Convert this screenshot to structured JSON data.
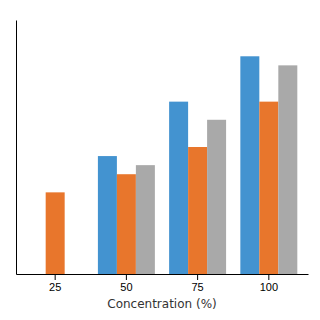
{
  "chart_data": {
    "type": "bar",
    "x_label": "Concentration (%)",
    "categories": [
      "25",
      "50",
      "75",
      "100"
    ],
    "series": [
      {
        "color": "#4393D0",
        "values": [
          0,
          13,
          19,
          24
        ]
      },
      {
        "color": "#E8762C",
        "values": [
          9,
          11,
          14,
          19
        ]
      },
      {
        "color": "#A9A9A9",
        "values": [
          0,
          12,
          17,
          23
        ]
      }
    ],
    "ylim": [
      0,
      28
    ],
    "grid": false,
    "tick_labels": "x"
  }
}
